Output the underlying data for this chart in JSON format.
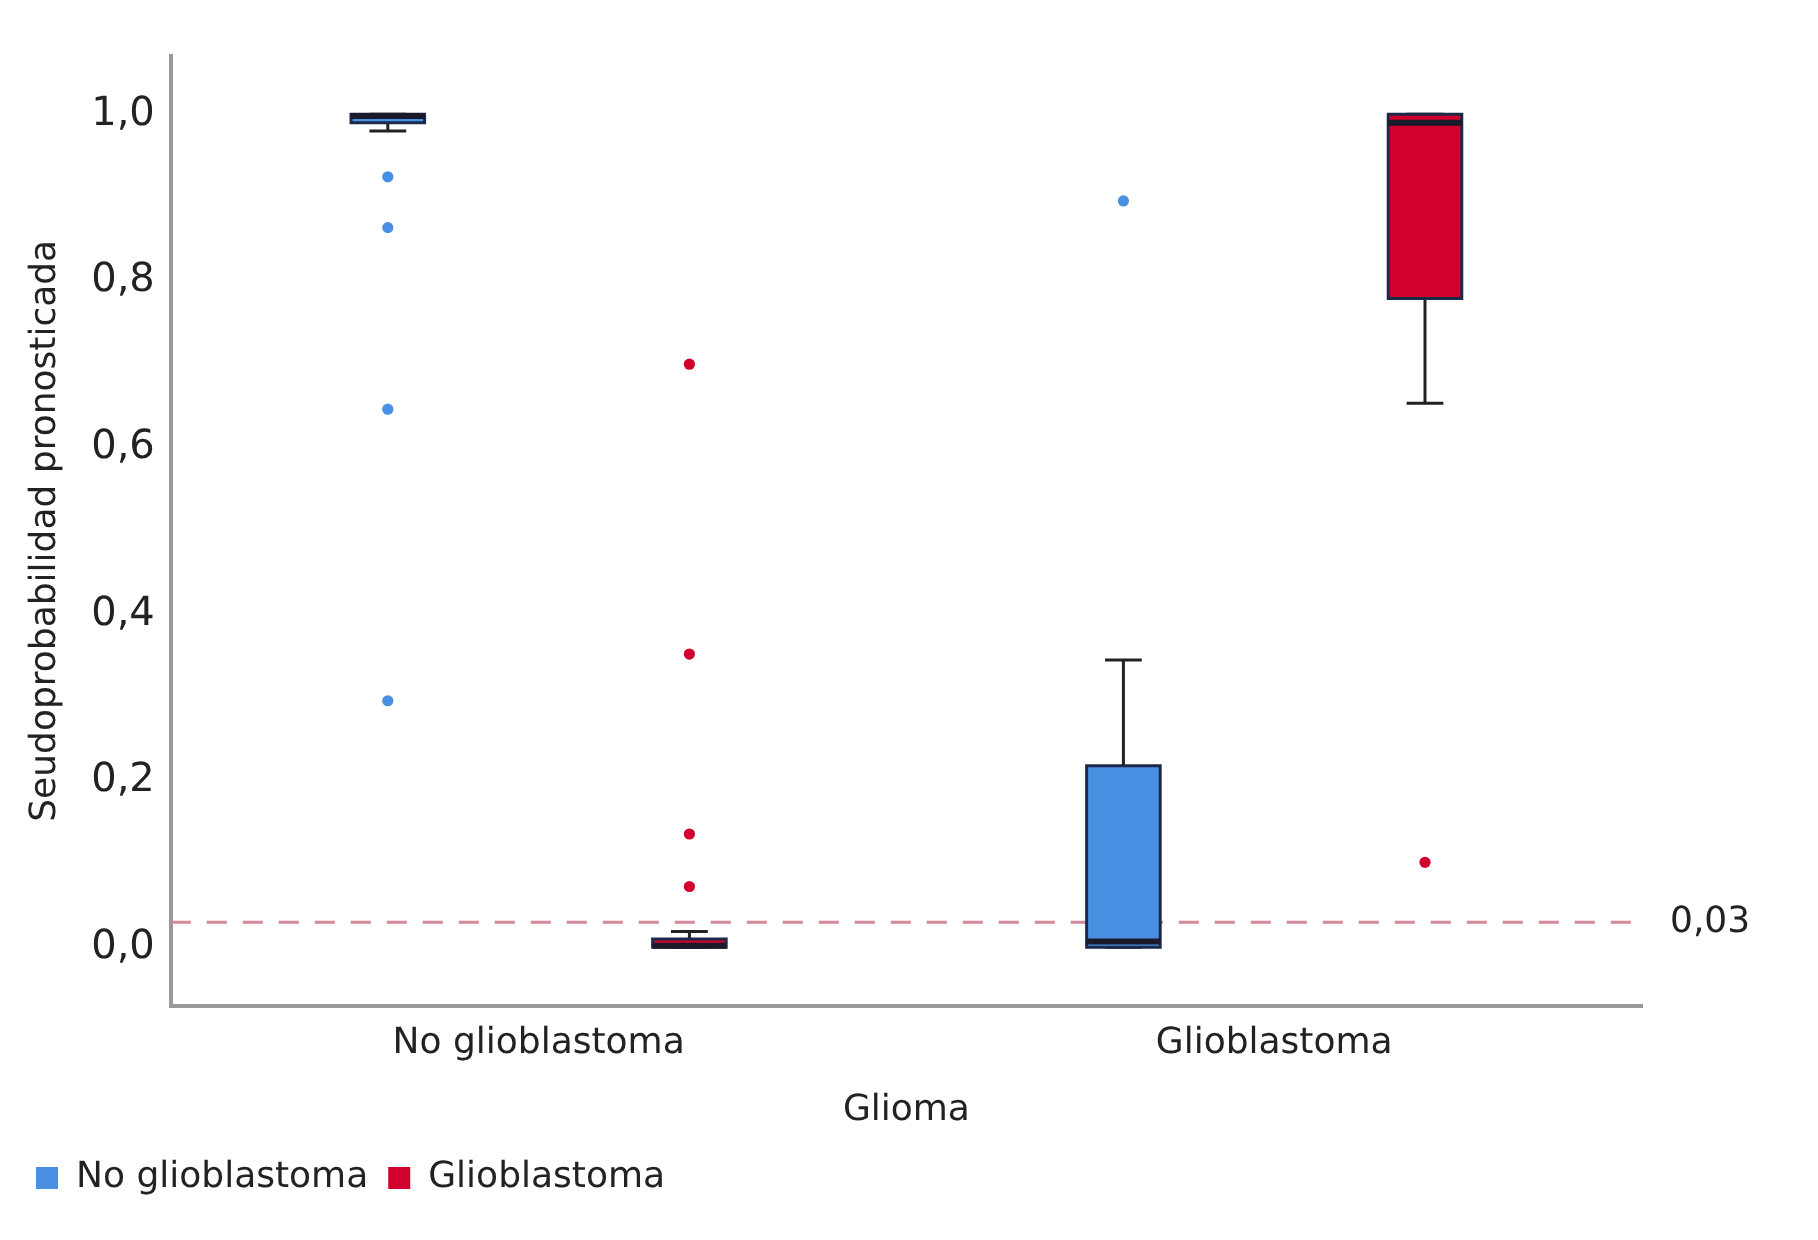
{
  "chart_data": {
    "type": "box",
    "xlabel": "Glioma",
    "ylabel": "Seudoprobabilidad pronosticada",
    "categories": [
      "No glioblastoma",
      "Glioblastoma"
    ],
    "ylim": [
      -0.07,
      1.07
    ],
    "yticks": [
      {
        "value": 0,
        "label": "0,0"
      },
      {
        "value": 0.2,
        "label": "0,2"
      },
      {
        "value": 0.4,
        "label": "0,4"
      },
      {
        "value": 0.6,
        "label": "0,6"
      },
      {
        "value": 0.8,
        "label": "0,8"
      },
      {
        "value": 1,
        "label": "1,0"
      }
    ],
    "grid": false,
    "legend": "bottom left",
    "marker": "circle",
    "ref_lines": [
      {
        "axis": "y",
        "value": 0.03,
        "label": "0,03",
        "color": "#d08898",
        "line_style": "dashed"
      }
    ],
    "series": [
      {
        "name": "No glioblastoma",
        "color": "#4a90e2",
        "boxes": [
          {
            "low": 0.98,
            "q1": 0.99,
            "median": 0.998,
            "q3": 1.0,
            "high": 1.0,
            "outliers": [
              0.925,
              0.864,
              0.646,
              0.296
            ]
          },
          {
            "low": 0,
            "q1": 0,
            "median": 0.007,
            "q3": 0.218,
            "high": 0.345,
            "outliers": [
              0.896
            ]
          }
        ]
      },
      {
        "name": "Glioblastoma",
        "color": "#d2002c",
        "boxes": [
          {
            "low": 0,
            "q1": 0,
            "median": 0.002,
            "q3": 0.01,
            "high": 0.019,
            "outliers": [
              0.7,
              0.352,
              0.136,
              0.073
            ]
          },
          {
            "low": 0.653,
            "q1": 0.779,
            "median": 0.99,
            "q3": 1.0,
            "high": 1.0,
            "outliers": [
              0.102
            ]
          }
        ]
      }
    ]
  }
}
